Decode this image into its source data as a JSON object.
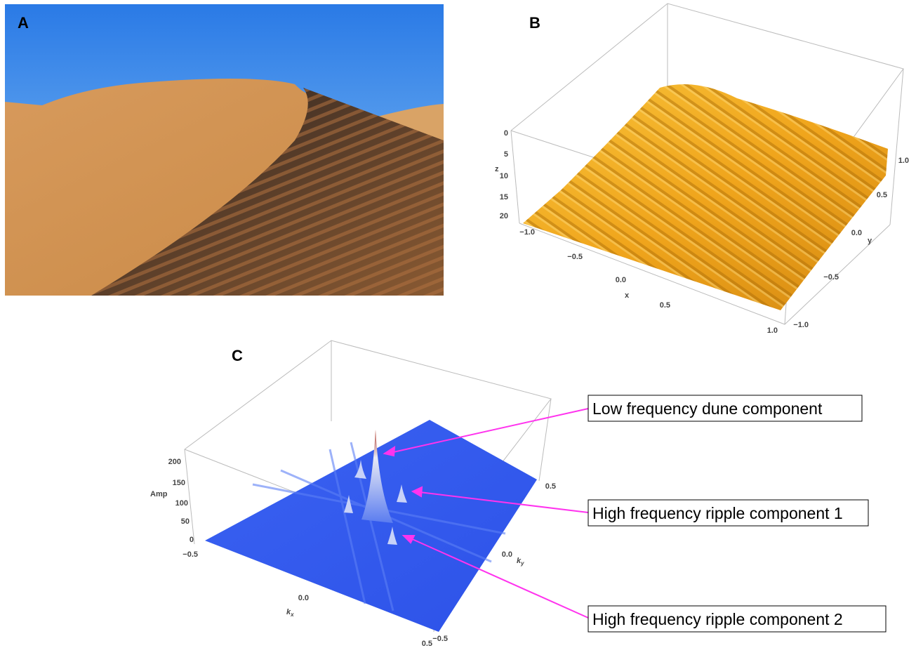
{
  "panels": [
    {
      "label": "A"
    },
    {
      "label": "B",
      "z_axis": {
        "label": "z",
        "ticks": [
          "0",
          "5",
          "10",
          "15",
          "20"
        ]
      },
      "x_axis": {
        "label": "x",
        "ticks": [
          "−1.0",
          "−0.5",
          "0.0",
          "0.5",
          "1.0"
        ]
      },
      "y_axis": {
        "label": "y",
        "ticks": [
          "−1.0",
          "−0.5",
          "0.0",
          "0.5",
          "1.0"
        ]
      }
    },
    {
      "label": "C",
      "amp_axis": {
        "label": "Amp",
        "ticks": [
          "0",
          "50",
          "100",
          "150",
          "200"
        ]
      },
      "kx_axis": {
        "label": {
          "base": "k",
          "sub": "x"
        },
        "ticks": [
          "−0.5",
          "0.0",
          "0.5"
        ]
      },
      "ky_axis": {
        "label": {
          "base": "k",
          "sub": "y"
        },
        "ticks": [
          "−0.5",
          "0.0",
          "0.5"
        ]
      },
      "annotations": [
        "Low frequency dune component",
        "High frequency ripple component 1",
        "High frequency ripple component 2"
      ]
    }
  ]
}
